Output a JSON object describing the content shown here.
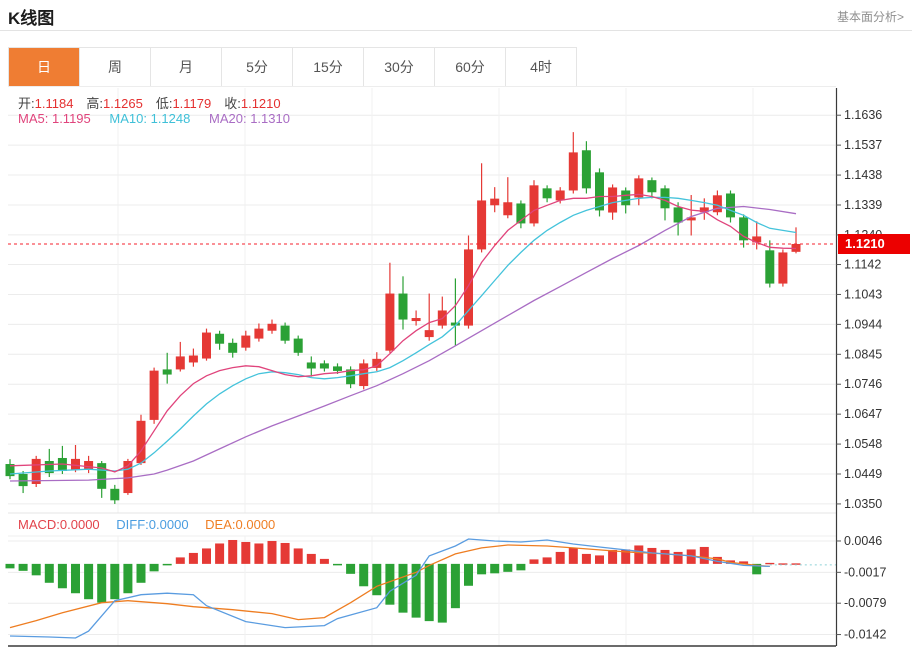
{
  "header": {
    "title": "K线图",
    "link": "基本面分析>"
  },
  "tabs": {
    "items": [
      {
        "label": "日",
        "active": true
      },
      {
        "label": "周"
      },
      {
        "label": "月"
      },
      {
        "label": "5分"
      },
      {
        "label": "15分"
      },
      {
        "label": "30分"
      },
      {
        "label": "60分"
      },
      {
        "label": "4时"
      }
    ]
  },
  "ohlc": {
    "open_label": "开:",
    "open": "1.1184",
    "high_label": "高:",
    "high": "1.1265",
    "low_label": "低:",
    "low": "1.1179",
    "close_label": "收:",
    "close": "1.1210"
  },
  "ma_row": {
    "ma5_label": "MA5:",
    "ma5": "1.1195",
    "ma10_label": "MA10:",
    "ma10": "1.1248",
    "ma20_label": "MA20:",
    "ma20": "1.1310"
  },
  "macd_row": {
    "macd_label": "MACD:",
    "macd": "0.0000",
    "diff_label": "DIFF:",
    "diff": "0.0000",
    "dea_label": "DEA:",
    "dea": "0.0000"
  },
  "price_badge": {
    "value": "1.1210"
  },
  "colors": {
    "up": "#e53935",
    "down": "#2ba135",
    "badge": "#ec0000",
    "price_line": "#f5222d",
    "ma5": "#e0447c",
    "ma10": "#44c3db",
    "ma20": "#a96dc4",
    "diff": "#5a9ce0",
    "dea": "#ee7d21",
    "grid": "#ececec",
    "vgrid": "#f1f1f1",
    "axis": "#3a3a3a",
    "tick_label": "#333333",
    "projection": "#8ed2d8"
  },
  "chart_data": {
    "type": "candlestick",
    "title": "K线图",
    "main": {
      "y_ticks": [
        1.1636,
        1.1537,
        1.1438,
        1.1339,
        1.124,
        1.1142,
        1.1043,
        1.0944,
        1.0845,
        1.0746,
        1.0647,
        1.0548,
        1.0449,
        1.035
      ],
      "ylim": [
        1.032,
        1.1726
      ],
      "price_line": 1.121,
      "candles": [
        [
          1.0482,
          1.0498,
          1.0432,
          1.0442
        ],
        [
          1.0449,
          1.0459,
          1.0386,
          1.0409
        ],
        [
          1.0416,
          1.0509,
          1.0406,
          1.0499
        ],
        [
          1.0492,
          1.0532,
          1.0439,
          1.0452
        ],
        [
          1.0502,
          1.0542,
          1.0449,
          1.0459
        ],
        [
          1.0462,
          1.0545,
          1.0455,
          1.0499
        ],
        [
          1.0465,
          1.0509,
          1.0452,
          1.0492
        ],
        [
          1.0485,
          1.0492,
          1.037,
          1.04
        ],
        [
          1.04,
          1.0413,
          1.035,
          1.0362
        ],
        [
          1.0386,
          1.0499,
          1.038,
          1.0492
        ],
        [
          1.0485,
          1.0645,
          1.0479,
          1.0625
        ],
        [
          1.0628,
          1.0801,
          1.0615,
          1.0791
        ],
        [
          1.0795,
          1.085,
          1.0748,
          1.0778
        ],
        [
          1.0795,
          1.0886,
          1.0788,
          1.0838
        ],
        [
          1.0818,
          1.0864,
          1.0804,
          1.0841
        ],
        [
          1.0831,
          1.093,
          1.0824,
          1.0917
        ],
        [
          1.0913,
          1.0923,
          1.086,
          1.088
        ],
        [
          1.0883,
          1.0897,
          1.0834,
          1.085
        ],
        [
          1.0867,
          1.0923,
          1.0857,
          1.0907
        ],
        [
          1.0897,
          1.0947,
          1.0887,
          1.093
        ],
        [
          1.0923,
          1.096,
          1.0913,
          1.0946
        ],
        [
          1.094,
          1.095,
          1.088,
          1.089
        ],
        [
          1.0897,
          1.0907,
          1.084,
          1.085
        ],
        [
          1.0818,
          1.0838,
          1.0771,
          1.0798
        ],
        [
          1.0815,
          1.0825,
          1.0788,
          1.0798
        ],
        [
          1.0805,
          1.0815,
          1.078,
          1.079
        ],
        [
          1.0795,
          1.0805,
          1.0733,
          1.0746
        ],
        [
          1.074,
          1.0828,
          1.0729,
          1.0815
        ],
        [
          1.08,
          1.0852,
          1.079,
          1.083
        ],
        [
          1.0857,
          1.1148,
          1.085,
          1.1046
        ],
        [
          1.1046,
          1.1103,
          1.0927,
          1.096
        ],
        [
          1.0955,
          1.099,
          1.094,
          1.0965
        ],
        [
          1.0902,
          1.1046,
          1.089,
          1.0925
        ],
        [
          1.094,
          1.1036,
          1.093,
          1.099
        ],
        [
          1.095,
          1.1096,
          1.0873,
          1.094
        ],
        [
          1.094,
          1.1238,
          1.093,
          1.1192
        ],
        [
          1.1192,
          1.1477,
          1.1182,
          1.1354
        ],
        [
          1.1338,
          1.1398,
          1.1315,
          1.136
        ],
        [
          1.1305,
          1.1431,
          1.1295,
          1.1348
        ],
        [
          1.1344,
          1.1354,
          1.1262,
          1.1278
        ],
        [
          1.1278,
          1.1421,
          1.1268,
          1.1404
        ],
        [
          1.1394,
          1.1404,
          1.1348,
          1.1361
        ],
        [
          1.1354,
          1.1398,
          1.1344,
          1.1387
        ],
        [
          1.1387,
          1.158,
          1.1377,
          1.1513
        ],
        [
          1.152,
          1.155,
          1.1377,
          1.1394
        ],
        [
          1.1447,
          1.146,
          1.1301,
          1.1321
        ],
        [
          1.1314,
          1.1407,
          1.129,
          1.1397
        ],
        [
          1.1387,
          1.1397,
          1.1311,
          1.1338
        ],
        [
          1.1364,
          1.1437,
          1.1338,
          1.1427
        ],
        [
          1.1421,
          1.143,
          1.1361,
          1.1381
        ],
        [
          1.1394,
          1.1404,
          1.1288,
          1.1328
        ],
        [
          1.1331,
          1.1348,
          1.1238,
          1.1281
        ],
        [
          1.1288,
          1.1372,
          1.1238,
          1.1298
        ],
        [
          1.1315,
          1.1361,
          1.129,
          1.1331
        ],
        [
          1.1315,
          1.1387,
          1.1305,
          1.1371
        ],
        [
          1.1377,
          1.1387,
          1.1281,
          1.1298
        ],
        [
          1.1298,
          1.1308,
          1.1198,
          1.1222
        ],
        [
          1.1215,
          1.1285,
          1.1192,
          1.1235
        ],
        [
          1.1189,
          1.1222,
          1.1066,
          1.1079
        ],
        [
          1.1079,
          1.1192,
          1.1069,
          1.1182
        ],
        [
          1.1184,
          1.1265,
          1.1179,
          1.121
        ]
      ],
      "ma5_points": [
        [
          0,
          1.0476
        ],
        [
          4,
          1.0482
        ],
        [
          7,
          1.0469
        ],
        [
          8,
          1.0456
        ],
        [
          9,
          1.0476
        ],
        [
          10,
          1.0525
        ],
        [
          11,
          1.0592
        ],
        [
          12,
          1.0658
        ],
        [
          13,
          1.0708
        ],
        [
          14,
          1.0748
        ],
        [
          15,
          1.0774
        ],
        [
          16,
          1.0791
        ],
        [
          17,
          1.0801
        ],
        [
          18,
          1.0807
        ],
        [
          19,
          1.0804
        ],
        [
          20,
          1.0791
        ],
        [
          21,
          1.0778
        ],
        [
          22,
          1.0771
        ],
        [
          23,
          1.0774
        ],
        [
          24,
          1.0781
        ],
        [
          25,
          1.0784
        ],
        [
          26,
          1.0791
        ],
        [
          27,
          1.0794
        ],
        [
          28,
          1.0807
        ],
        [
          29,
          1.0847
        ],
        [
          30,
          1.089
        ],
        [
          31,
          1.0923
        ],
        [
          32,
          1.095
        ],
        [
          33,
          1.0963
        ],
        [
          34,
          1.1006
        ],
        [
          35,
          1.1072
        ],
        [
          36,
          1.1149
        ],
        [
          37,
          1.1205
        ],
        [
          38,
          1.1255
        ],
        [
          39,
          1.1288
        ],
        [
          40,
          1.1321
        ],
        [
          41,
          1.1338
        ],
        [
          42,
          1.1354
        ],
        [
          43,
          1.1361
        ],
        [
          44,
          1.1361
        ],
        [
          45,
          1.1367
        ],
        [
          46,
          1.1367
        ],
        [
          47,
          1.1371
        ],
        [
          48,
          1.1374
        ],
        [
          49,
          1.1367
        ],
        [
          50,
          1.1354
        ],
        [
          51,
          1.1334
        ],
        [
          52,
          1.1322
        ],
        [
          53,
          1.1318
        ],
        [
          54,
          1.129
        ],
        [
          55,
          1.1268
        ],
        [
          56,
          1.1235
        ],
        [
          57,
          1.1215
        ],
        [
          58,
          1.1199
        ],
        [
          59,
          1.1196
        ],
        [
          60,
          1.1195
        ]
      ],
      "ma10_points": [
        [
          0,
          1.0449
        ],
        [
          3,
          1.0459
        ],
        [
          6,
          1.0465
        ],
        [
          8,
          1.0459
        ],
        [
          9,
          1.0465
        ],
        [
          10,
          1.0485
        ],
        [
          11,
          1.0519
        ],
        [
          12,
          1.0558
        ],
        [
          13,
          1.0598
        ],
        [
          14,
          1.0641
        ],
        [
          15,
          1.0681
        ],
        [
          16,
          1.0714
        ],
        [
          17,
          1.0741
        ],
        [
          18,
          1.0764
        ],
        [
          19,
          1.0781
        ],
        [
          20,
          1.0787
        ],
        [
          21,
          1.0784
        ],
        [
          22,
          1.0778
        ],
        [
          23,
          1.0768
        ],
        [
          24,
          1.0764
        ],
        [
          25,
          1.0768
        ],
        [
          26,
          1.0774
        ],
        [
          27,
          1.0781
        ],
        [
          28,
          1.0787
        ],
        [
          29,
          1.0801
        ],
        [
          30,
          1.0824
        ],
        [
          31,
          1.085
        ],
        [
          32,
          1.0877
        ],
        [
          33,
          1.0903
        ],
        [
          34,
          1.094
        ],
        [
          35,
          1.099
        ],
        [
          36,
          1.1039
        ],
        [
          37,
          1.1089
        ],
        [
          38,
          1.1139
        ],
        [
          39,
          1.1182
        ],
        [
          40,
          1.1222
        ],
        [
          41,
          1.1255
        ],
        [
          42,
          1.1281
        ],
        [
          43,
          1.1305
        ],
        [
          44,
          1.1321
        ],
        [
          45,
          1.1334
        ],
        [
          46,
          1.1347
        ],
        [
          47,
          1.1354
        ],
        [
          48,
          1.1361
        ],
        [
          49,
          1.1364
        ],
        [
          50,
          1.1364
        ],
        [
          51,
          1.1361
        ],
        [
          52,
          1.1354
        ],
        [
          53,
          1.1347
        ],
        [
          54,
          1.1338
        ],
        [
          55,
          1.1321
        ],
        [
          56,
          1.1305
        ],
        [
          57,
          1.1281
        ],
        [
          58,
          1.1262
        ],
        [
          60,
          1.1248
        ]
      ],
      "ma20_points": [
        [
          0,
          1.0426
        ],
        [
          6,
          1.0429
        ],
        [
          9,
          1.0436
        ],
        [
          11,
          1.0449
        ],
        [
          12,
          1.0462
        ],
        [
          14,
          1.0492
        ],
        [
          16,
          1.0532
        ],
        [
          18,
          1.0572
        ],
        [
          20,
          1.0608
        ],
        [
          22,
          1.0641
        ],
        [
          24,
          1.0674
        ],
        [
          26,
          1.0708
        ],
        [
          28,
          1.0741
        ],
        [
          30,
          1.0781
        ],
        [
          32,
          1.0824
        ],
        [
          34,
          1.0873
        ],
        [
          36,
          1.0923
        ],
        [
          38,
          1.0973
        ],
        [
          40,
          1.1023
        ],
        [
          42,
          1.1069
        ],
        [
          44,
          1.1116
        ],
        [
          46,
          1.1162
        ],
        [
          48,
          1.1205
        ],
        [
          50,
          1.1255
        ],
        [
          52,
          1.1301
        ],
        [
          54,
          1.1328
        ],
        [
          56,
          1.1334
        ],
        [
          58,
          1.1324
        ],
        [
          60,
          1.131
        ]
      ]
    },
    "macd": {
      "y_ticks": [
        0.0046,
        -0.0017,
        -0.0079,
        -0.0142
      ],
      "ylim": [
        -0.0165,
        0.0056
      ],
      "histogram": [
        -0.0009,
        -0.0014,
        -0.0023,
        -0.0038,
        -0.0049,
        -0.0059,
        -0.0071,
        -0.0078,
        -0.0071,
        -0.0059,
        -0.0038,
        -0.0015,
        -0.0003,
        0.0013,
        0.0022,
        0.0031,
        0.0041,
        0.0048,
        0.0044,
        0.0041,
        0.0046,
        0.0042,
        0.0031,
        0.002,
        0.001,
        -0.0003,
        -0.002,
        -0.0045,
        -0.0063,
        -0.0082,
        -0.0098,
        -0.0108,
        -0.0115,
        -0.0118,
        -0.0089,
        -0.0044,
        -0.0021,
        -0.0019,
        -0.0016,
        -0.0013,
        0.0009,
        0.0013,
        0.0024,
        0.0032,
        0.002,
        0.0017,
        0.0028,
        0.0029,
        0.0037,
        0.0032,
        0.0028,
        0.0024,
        0.0029,
        0.0034,
        0.0014,
        0.0007,
        0.0005,
        -0.0021,
        0.0002,
        0.0001,
        0.0001
      ],
      "diff_points": [
        [
          0,
          -0.0145
        ],
        [
          3,
          -0.0147
        ],
        [
          5,
          -0.0149
        ],
        [
          6,
          -0.0135
        ],
        [
          8,
          -0.0074
        ],
        [
          10,
          -0.0062
        ],
        [
          12,
          -0.0059
        ],
        [
          14,
          -0.0062
        ],
        [
          15,
          -0.0084
        ],
        [
          18,
          -0.0116
        ],
        [
          21,
          -0.0128
        ],
        [
          24,
          -0.0124
        ],
        [
          25,
          -0.011
        ],
        [
          28,
          -0.0088
        ],
        [
          29,
          -0.0055
        ],
        [
          31,
          -0.0023
        ],
        [
          32,
          0.0016
        ],
        [
          34,
          0.0036
        ],
        [
          35,
          0.005
        ],
        [
          37,
          0.0046
        ],
        [
          39,
          0.0044
        ],
        [
          41,
          0.0048
        ],
        [
          43,
          0.004
        ],
        [
          45,
          0.0034
        ],
        [
          47,
          0.0028
        ],
        [
          49,
          0.0022
        ],
        [
          52,
          0.0016
        ],
        [
          54,
          0.0005
        ],
        [
          56,
          -0.0003
        ],
        [
          58,
          -0.0005
        ]
      ],
      "dea_points": [
        [
          0,
          -0.0128
        ],
        [
          2,
          -0.0114
        ],
        [
          4,
          -0.0098
        ],
        [
          7,
          -0.0078
        ],
        [
          9,
          -0.0074
        ],
        [
          12,
          -0.008
        ],
        [
          14,
          -0.0086
        ],
        [
          17,
          -0.0092
        ],
        [
          20,
          -0.01
        ],
        [
          22,
          -0.0112
        ],
        [
          24,
          -0.0108
        ],
        [
          26,
          -0.0078
        ],
        [
          28,
          -0.0045
        ],
        [
          31,
          -0.0017
        ],
        [
          32,
          -0.0003
        ],
        [
          34,
          0.002
        ],
        [
          36,
          0.0032
        ],
        [
          38,
          0.0038
        ],
        [
          41,
          0.0036
        ],
        [
          43,
          0.0032
        ],
        [
          45,
          0.0028
        ],
        [
          47,
          0.0024
        ],
        [
          50,
          0.002
        ],
        [
          52,
          0.0016
        ],
        [
          54,
          0.001
        ],
        [
          55,
          0.0003
        ],
        [
          57,
          -0.0003
        ],
        [
          58,
          -0.0005
        ]
      ],
      "projection_value": -0.0002
    }
  }
}
